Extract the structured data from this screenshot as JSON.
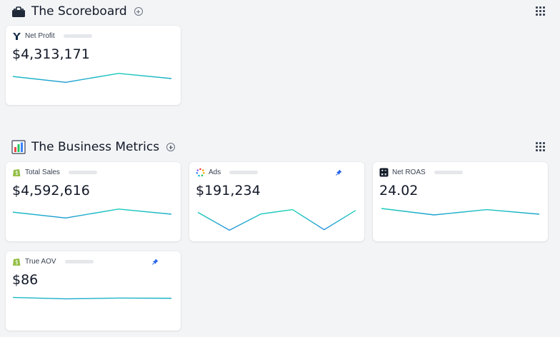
{
  "sections": [
    {
      "title": "The Scoreboard",
      "icon": "toolbox-icon",
      "cards": [
        {
          "label": "Net Profit",
          "value": "$4,313,171",
          "icon": "triple-whale-logo-icon",
          "pinned": false,
          "trend": [
            0.62,
            0.28,
            0.8,
            0.5
          ]
        }
      ]
    },
    {
      "title": "The Business Metrics",
      "icon": "bar-chart-icon",
      "cards": [
        {
          "label": "Total Sales",
          "value": "$4,592,616",
          "icon": "shopify-icon",
          "pinned": false,
          "trend": [
            0.62,
            0.28,
            0.8,
            0.5
          ]
        },
        {
          "label": "Ads",
          "value": "$191,234",
          "icon": "ads-dots-icon",
          "pinned": true,
          "trend": [
            0.78,
            0.12,
            0.72,
            0.88,
            0.14,
            0.85
          ]
        },
        {
          "label": "Net ROAS",
          "value": "24.02",
          "icon": "calculator-icon",
          "pinned": false,
          "trend": [
            0.8,
            0.35,
            0.72,
            0.4
          ]
        },
        {
          "label": "True AOV",
          "value": "$86",
          "icon": "shopify-icon",
          "pinned": true,
          "trend": [
            0.62,
            0.45,
            0.55,
            0.52
          ]
        }
      ]
    }
  ],
  "colors": {
    "spark_start": "#19e0b0",
    "spark_dip": "#1f7fe0",
    "pin": "#2563eb",
    "placeholder": "#e5e7eb"
  }
}
